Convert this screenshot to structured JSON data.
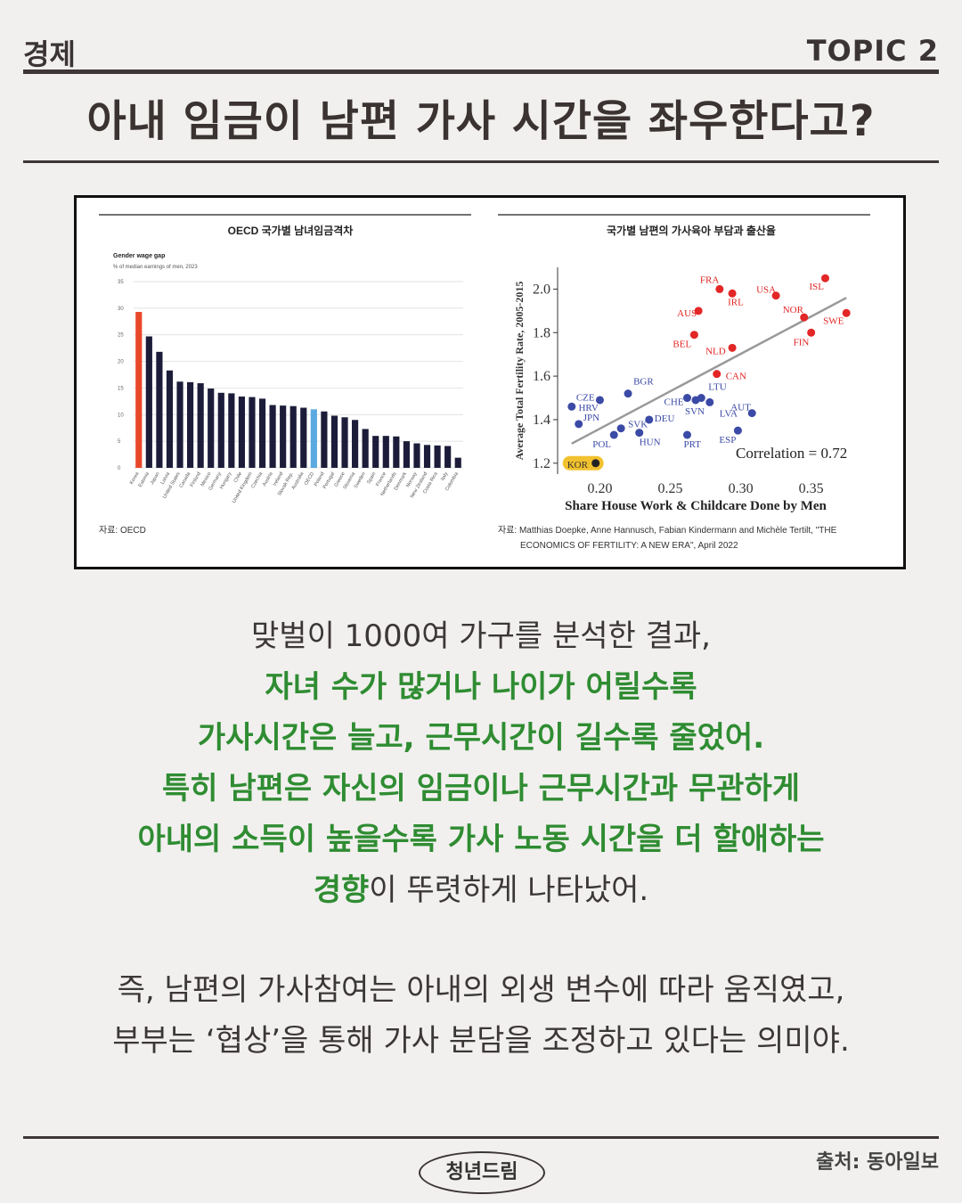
{
  "header": {
    "category": "경제",
    "topic": "TOPIC 2",
    "title": "아내 임금이 남편 가사 시간을 좌우한다고?"
  },
  "colors": {
    "accent_green": "#2f8c32",
    "bar_dark": "#1c1c3a",
    "bar_korea": "#e8472a",
    "bar_oecd": "#5aa9e0",
    "dot_red": "#e32626",
    "dot_blue": "#3b4aa6"
  },
  "chart_data": [
    {
      "type": "bar",
      "title": "OECD 국가별 남녀임금격차",
      "subtitle": "Gender wage gap",
      "subtitle2": "% of median earnings of men, 2023",
      "source": "자료: OECD",
      "ylim": [
        0,
        35
      ],
      "yticks": [
        "0",
        "5",
        "10",
        "15",
        "20",
        "25",
        "30",
        "35"
      ],
      "categories": [
        "Korea",
        "Estonia",
        "Japan",
        "Latvia",
        "United States",
        "Canada",
        "Finland",
        "Mexico",
        "Germany",
        "Hungary",
        "Chile",
        "United Kingdom",
        "Czechia",
        "Austria",
        "Ireland",
        "Slovak Rep.",
        "Australia",
        "OECD",
        "Poland",
        "Portugal",
        "Greece",
        "Slovenia",
        "Sweden",
        "Spain",
        "France",
        "Netherlands",
        "Denmark",
        "Norway",
        "New Zealand",
        "Costa Rica",
        "Italy",
        "Colombia"
      ],
      "values": [
        29.3,
        24.7,
        21.8,
        18.3,
        16.2,
        16.1,
        15.9,
        14.9,
        14.1,
        14.0,
        13.4,
        13.3,
        13.0,
        11.8,
        11.7,
        11.6,
        11.3,
        11.0,
        10.6,
        9.8,
        9.5,
        9.0,
        7.3,
        6.0,
        6.0,
        5.9,
        5.0,
        4.6,
        4.3,
        4.2,
        4.1,
        1.9
      ],
      "highlight": {
        "Korea": "#e8472a",
        "OECD": "#5aa9e0"
      }
    },
    {
      "type": "scatter",
      "title": "국가별 남편의 가사육아 부담과 출산율",
      "xlabel": "Share House Work & Childcare Done by Men",
      "ylabel": "Average Total Fertility Rate, 2005-2015",
      "xlim": [
        0.17,
        0.385
      ],
      "ylim": [
        1.15,
        2.1
      ],
      "xticks": [
        "0.20",
        "0.25",
        "0.30",
        "0.35"
      ],
      "yticks": [
        "1.2",
        "1.4",
        "1.6",
        "1.8",
        "2.0"
      ],
      "annotation": "Correlation = 0.72",
      "trend": [
        [
          0.18,
          1.29
        ],
        [
          0.375,
          1.96
        ]
      ],
      "source": "자료: Matthias Doepke, Anne Hannusch, Fabian Kindermann and Michèle Tertilt, \"THE ECONOMICS OF FERTILITY: A NEW ERA\", April 2022",
      "points": [
        {
          "label": "FRA",
          "x": 0.285,
          "y": 2.0,
          "group": "red"
        },
        {
          "label": "IRL",
          "x": 0.294,
          "y": 1.98,
          "group": "red"
        },
        {
          "label": "USA",
          "x": 0.325,
          "y": 1.97,
          "group": "red"
        },
        {
          "label": "ISL",
          "x": 0.36,
          "y": 2.05,
          "group": "red"
        },
        {
          "label": "AUS",
          "x": 0.27,
          "y": 1.9,
          "group": "red"
        },
        {
          "label": "NOR",
          "x": 0.345,
          "y": 1.87,
          "group": "red"
        },
        {
          "label": "SWE",
          "x": 0.375,
          "y": 1.89,
          "group": "red"
        },
        {
          "label": "BEL",
          "x": 0.267,
          "y": 1.79,
          "group": "red"
        },
        {
          "label": "FIN",
          "x": 0.35,
          "y": 1.8,
          "group": "red"
        },
        {
          "label": "NLD",
          "x": 0.294,
          "y": 1.73,
          "group": "red"
        },
        {
          "label": "CAN",
          "x": 0.283,
          "y": 1.61,
          "group": "red"
        },
        {
          "label": "CZE",
          "x": 0.18,
          "y": 1.46,
          "group": "blue"
        },
        {
          "label": "JPN",
          "x": 0.185,
          "y": 1.38,
          "group": "blue"
        },
        {
          "label": "HRV",
          "x": 0.2,
          "y": 1.49,
          "group": "blue"
        },
        {
          "label": "BGR",
          "x": 0.22,
          "y": 1.52,
          "group": "blue"
        },
        {
          "label": "POL",
          "x": 0.21,
          "y": 1.33,
          "group": "blue"
        },
        {
          "label": "SVK",
          "x": 0.215,
          "y": 1.36,
          "group": "blue"
        },
        {
          "label": "HUN",
          "x": 0.228,
          "y": 1.34,
          "group": "blue"
        },
        {
          "label": "DEU",
          "x": 0.235,
          "y": 1.4,
          "group": "blue"
        },
        {
          "label": "CHE",
          "x": 0.262,
          "y": 1.5,
          "group": "blue"
        },
        {
          "label": "SVN",
          "x": 0.268,
          "y": 1.49,
          "group": "blue"
        },
        {
          "label": "LTU",
          "x": 0.272,
          "y": 1.5,
          "group": "blue"
        },
        {
          "label": "LVA",
          "x": 0.278,
          "y": 1.48,
          "group": "blue"
        },
        {
          "label": "PRT",
          "x": 0.262,
          "y": 1.33,
          "group": "blue"
        },
        {
          "label": "ESP",
          "x": 0.298,
          "y": 1.35,
          "group": "blue"
        },
        {
          "label": "AUT",
          "x": 0.308,
          "y": 1.43,
          "group": "blue"
        },
        {
          "label": "KOR",
          "x": 0.197,
          "y": 1.2,
          "group": "highlight"
        }
      ]
    }
  ],
  "content": {
    "p1": "맞벌이 1000여 가구를 분석한 결과,",
    "p2": "자녀 수가 많거나 나이가 어릴수록",
    "p3": "가사시간은 늘고, 근무시간이 길수록 줄었어.",
    "p4": "특히 남편은 자신의 임금이나 근무시간과 무관하게",
    "p5": "아내의 소득이 높을수록 가사 노동 시간을 더 할애하는",
    "p6a": "경향",
    "p6b": "이 뚜렷하게 나타났어.",
    "p7": "즉, 남편의 가사참여는 아내의 외생 변수에 따라 움직였고,",
    "p8": "부부는 ‘협상’을 통해 가사 분담을 조정하고 있다는 의미야."
  },
  "footer": {
    "brand": "청년드림",
    "source": "출처: 동아일보"
  }
}
